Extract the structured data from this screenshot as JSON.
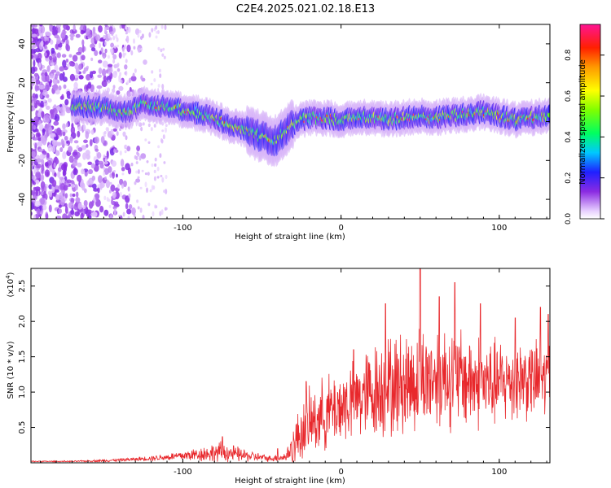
{
  "figure_title": "C2E4.2025.021.02.18.E13",
  "chart_data": [
    {
      "type": "heatmap",
      "xlabel": "Height of straight line (km)",
      "ylabel": "Frequency (Hz)",
      "xlim": [
        -196,
        132
      ],
      "ylim": [
        -50,
        50
      ],
      "xticks": [
        -100,
        0,
        100
      ],
      "yticks": [
        -40,
        -20,
        0,
        20,
        40
      ],
      "colorbar": {
        "label": "Normalized spectral amplitude",
        "range": [
          0,
          0.95
        ],
        "ticks": [
          0.0,
          0.2,
          0.4,
          0.6,
          0.8
        ],
        "tick_labels": [
          "0.0",
          "0.2",
          "0.4",
          "0.6",
          "0.8"
        ]
      },
      "ridge_center_hz": [
        [
          -165,
          8
        ],
        [
          -150,
          7
        ],
        [
          -135,
          5
        ],
        [
          -125,
          9
        ],
        [
          -115,
          8
        ],
        [
          -100,
          6
        ],
        [
          -90,
          4
        ],
        [
          -80,
          2
        ],
        [
          -70,
          -2
        ],
        [
          -60,
          -4
        ],
        [
          -50,
          -8
        ],
        [
          -42,
          -10
        ],
        [
          -35,
          -5
        ],
        [
          -28,
          0
        ],
        [
          -20,
          2
        ],
        [
          -10,
          2
        ],
        [
          0,
          1
        ],
        [
          10,
          2
        ],
        [
          20,
          2
        ],
        [
          30,
          1
        ],
        [
          40,
          2
        ],
        [
          50,
          3
        ],
        [
          60,
          2
        ],
        [
          70,
          3
        ],
        [
          80,
          4
        ],
        [
          90,
          5
        ],
        [
          100,
          3
        ],
        [
          110,
          1
        ],
        [
          120,
          2
        ],
        [
          130,
          3
        ]
      ]
    },
    {
      "type": "line",
      "xlabel": "Height of straight line (km)",
      "ylabel": "SNR (10 * v/v)",
      "multiplier_label": "(x10",
      "multiplier_exp": "4",
      "multiplier_close": ")",
      "xlim": [
        -196,
        132
      ],
      "ylim": [
        0,
        2.75
      ],
      "xticks": [
        -100,
        0,
        100
      ],
      "yticks": [
        0.5,
        1.0,
        1.5,
        2.0,
        2.5
      ],
      "ytick_labels": [
        "0.5",
        "1.0",
        "1.5",
        "2.0",
        "2.5"
      ],
      "series_color": "#e8282c",
      "envelope": {
        "x": [
          -196,
          -170,
          -150,
          -130,
          -110,
          -90,
          -75,
          -60,
          -45,
          -35,
          -30,
          -25,
          -20,
          -10,
          0,
          10,
          20,
          25,
          35,
          45,
          55,
          65,
          75,
          85,
          95,
          105,
          115,
          125,
          132
        ],
        "base": [
          0.02,
          0.02,
          0.03,
          0.05,
          0.08,
          0.12,
          0.15,
          0.1,
          0.06,
          0.08,
          0.25,
          0.45,
          0.55,
          0.7,
          0.8,
          0.9,
          1.0,
          1.05,
          1.1,
          1.15,
          1.2,
          1.25,
          1.2,
          1.15,
          1.1,
          1.15,
          1.2,
          1.15,
          1.2
        ],
        "amp": [
          0.01,
          0.01,
          0.02,
          0.03,
          0.06,
          0.12,
          0.18,
          0.1,
          0.05,
          0.08,
          0.35,
          0.5,
          0.55,
          0.6,
          0.65,
          0.7,
          0.8,
          0.85,
          0.85,
          0.9,
          0.85,
          0.9,
          0.85,
          0.8,
          0.75,
          0.7,
          0.7,
          0.65,
          0.65
        ]
      },
      "peaks": [
        [
          -75,
          0.37
        ],
        [
          -40,
          0.2
        ],
        [
          -22,
          1.15
        ],
        [
          8,
          1.6
        ],
        [
          28,
          2.25
        ],
        [
          50,
          2.75
        ],
        [
          62,
          2.35
        ],
        [
          72,
          2.55
        ],
        [
          88,
          2.25
        ],
        [
          110,
          2.05
        ],
        [
          126,
          2.2
        ],
        [
          131,
          2.1
        ]
      ]
    }
  ]
}
